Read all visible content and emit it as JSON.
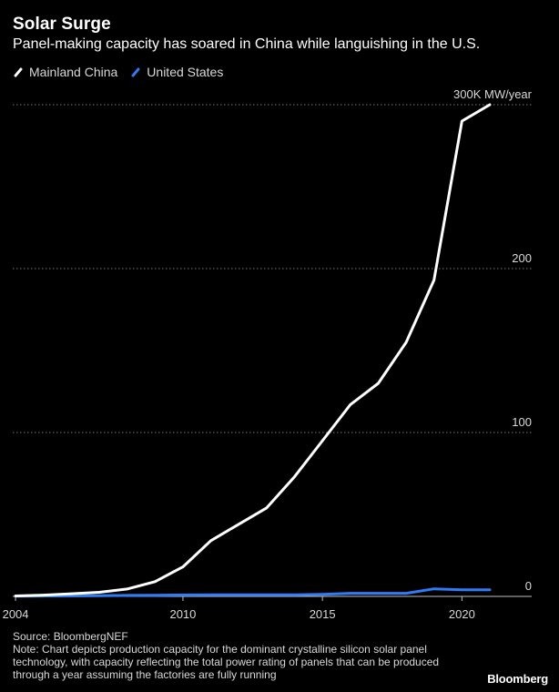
{
  "header": {
    "title": "Solar Surge",
    "subtitle": "Panel-making capacity has soared in China while languishing in the U.S."
  },
  "colors": {
    "background": "#000000",
    "china_line": "#ffffff",
    "us_line": "#2f7cf6",
    "gridline": "#7a7a7a",
    "axis": "#bfbfbf"
  },
  "chart_data": {
    "type": "line",
    "title": "Solar Surge",
    "subtitle": "Panel-making capacity has soared in China while languishing in the U.S.",
    "xlabel": "",
    "ylabel": "",
    "x": [
      2004,
      2005,
      2006,
      2007,
      2008,
      2009,
      2010,
      2011,
      2012,
      2013,
      2014,
      2015,
      2016,
      2017,
      2018,
      2019,
      2020,
      2021
    ],
    "series": [
      {
        "name": "Mainland China",
        "color": "#ffffff",
        "values": [
          0.3,
          0.8,
          1.6,
          2.5,
          4.5,
          9,
          18,
          34,
          44,
          54,
          73,
          95,
          117,
          130,
          155,
          193,
          290,
          300
        ]
      },
      {
        "name": "United States",
        "color": "#2f7cf6",
        "values": [
          0.1,
          0.2,
          0.3,
          0.4,
          0.6,
          0.7,
          0.9,
          1.0,
          1.0,
          1.0,
          1.0,
          1.3,
          1.9,
          1.9,
          1.9,
          4.6,
          4.0,
          4.0
        ]
      }
    ],
    "xlim": [
      2003.9,
      2022.5
    ],
    "ylim": [
      0,
      300
    ],
    "y_ticks": [
      {
        "value": 0,
        "label": "0"
      },
      {
        "value": 100,
        "label": "100"
      },
      {
        "value": 200,
        "label": "200"
      },
      {
        "value": 300,
        "label": "300K MW/year"
      }
    ],
    "x_ticks": [
      {
        "value": 2004,
        "label": "2004"
      },
      {
        "value": 2010,
        "label": "2010"
      },
      {
        "value": 2015,
        "label": "2015"
      },
      {
        "value": 2020,
        "label": "2020"
      }
    ],
    "grid": true,
    "legend_position": "top-left"
  },
  "footer": {
    "source": "Source: BloombergNEF",
    "note": "Note: Chart depicts production capacity for the dominant crystalline silicon solar panel technology, with capacity reflecting the total power rating of panels that can be produced through a year assuming the factories are fully running",
    "brand": "Bloomberg"
  }
}
